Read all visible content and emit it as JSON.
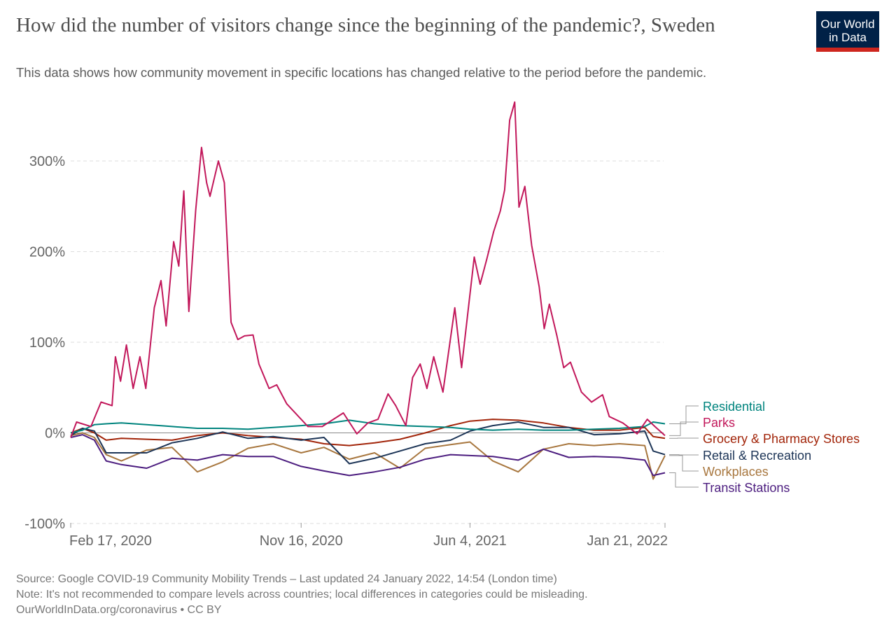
{
  "header": {
    "title": "How did the number of visitors change since the beginning of the pandemic?, Sweden",
    "subtitle": "This data shows how community movement in specific locations has changed relative to the period before the pandemic.",
    "logo": "Our World in Data"
  },
  "footer": {
    "source": "Source: Google COVID-19 Community Mobility Trends – Last updated 24 January 2022, 14:54 (London time)",
    "note": "Note: It's not recommended to compare levels across countries; local differences in categories could be misleading.",
    "credit": "OurWorldInData.org/coronavirus • CC BY"
  },
  "chart_data": {
    "type": "line",
    "title": "How did the number of visitors change since the beginning of the pandemic?, Sweden",
    "xlim": [
      "2020-02-17",
      "2022-01-21"
    ],
    "ylim": [
      -100,
      300
    ],
    "x_ticks": [
      {
        "date": "2020-02-17",
        "label": "Feb 17, 2020"
      },
      {
        "date": "2020-11-16",
        "label": "Nov 16, 2020"
      },
      {
        "date": "2021-06-04",
        "label": "Jun 4, 2021"
      },
      {
        "date": "2022-01-21",
        "label": "Jan 21, 2022"
      }
    ],
    "y_ticks": [
      {
        "value": 300,
        "label": "300%"
      },
      {
        "value": 200,
        "label": "200%"
      },
      {
        "value": 100,
        "label": "100%"
      },
      {
        "value": 0,
        "label": "0%"
      },
      {
        "value": -100,
        "label": "-100%"
      }
    ],
    "grid": "horizontal dashed",
    "legend": "right, labels at line ends",
    "series": [
      {
        "name": "Residential",
        "color": "#00847e",
        "dates": [
          "2020-02-17",
          "2020-03-02",
          "2020-03-16",
          "2020-03-30",
          "2020-04-17",
          "2020-05-17",
          "2020-06-16",
          "2020-07-16",
          "2020-08-15",
          "2020-09-14",
          "2020-10-14",
          "2020-11-16",
          "2020-12-13",
          "2021-01-12",
          "2021-02-11",
          "2021-03-13",
          "2021-04-12",
          "2021-05-12",
          "2021-06-04",
          "2021-07-01",
          "2021-07-31",
          "2021-08-30",
          "2021-09-29",
          "2021-10-29",
          "2021-11-28",
          "2021-12-28",
          "2022-01-07",
          "2022-01-21"
        ],
        "values": [
          0,
          3,
          9,
          10,
          11,
          9,
          7,
          5,
          5,
          4,
          6,
          8,
          10,
          14,
          10,
          8,
          7,
          6,
          4,
          3,
          4,
          3,
          3,
          4,
          5,
          7,
          12,
          10
        ]
      },
      {
        "name": "Parks",
        "color": "#c2185b",
        "dates": [
          "2020-02-17",
          "2020-02-24",
          "2020-03-12",
          "2020-03-24",
          "2020-04-06",
          "2020-04-10",
          "2020-04-16",
          "2020-04-23",
          "2020-05-01",
          "2020-05-09",
          "2020-05-16",
          "2020-05-26",
          "2020-06-03",
          "2020-06-09",
          "2020-06-18",
          "2020-06-24",
          "2020-06-30",
          "2020-07-06",
          "2020-07-14",
          "2020-07-21",
          "2020-07-27",
          "2020-07-31",
          "2020-08-10",
          "2020-08-17",
          "2020-08-25",
          "2020-09-02",
          "2020-09-10",
          "2020-09-20",
          "2020-09-27",
          "2020-10-09",
          "2020-10-18",
          "2020-10-30",
          "2020-11-16",
          "2020-11-24",
          "2020-12-11",
          "2021-01-05",
          "2021-01-21",
          "2021-02-03",
          "2021-02-15",
          "2021-02-27",
          "2021-03-08",
          "2021-03-20",
          "2021-03-28",
          "2021-04-06",
          "2021-04-14",
          "2021-04-22",
          "2021-05-03",
          "2021-05-17",
          "2021-05-25",
          "2021-06-03",
          "2021-06-09",
          "2021-06-16",
          "2021-06-24",
          "2021-07-02",
          "2021-07-10",
          "2021-07-15",
          "2021-07-21",
          "2021-07-27",
          "2021-08-01",
          "2021-08-08",
          "2021-08-16",
          "2021-08-25",
          "2021-08-31",
          "2021-09-06",
          "2021-09-15",
          "2021-09-23",
          "2021-10-01",
          "2021-10-14",
          "2021-10-26",
          "2021-11-08",
          "2021-11-16",
          "2021-12-02",
          "2021-12-19",
          "2021-12-31",
          "2022-01-09",
          "2022-01-21"
        ],
        "values": [
          -5,
          12,
          7,
          34,
          30,
          84,
          57,
          97,
          49,
          84,
          49,
          138,
          168,
          118,
          211,
          184,
          267,
          134,
          245,
          315,
          276,
          261,
          300,
          276,
          122,
          103,
          107,
          108,
          76,
          49,
          53,
          32,
          15,
          7,
          7,
          22,
          -1,
          11,
          15,
          43,
          30,
          8,
          61,
          76,
          49,
          84,
          45,
          138,
          72,
          145,
          194,
          164,
          192,
          222,
          245,
          268,
          345,
          365,
          249,
          272,
          207,
          161,
          115,
          142,
          107,
          72,
          78,
          45,
          34,
          42,
          18,
          11,
          -1,
          15,
          7,
          -3
        ]
      },
      {
        "name": "Grocery & Pharmacy Stores",
        "color": "#a2250a",
        "dates": [
          "2020-02-17",
          "2020-03-02",
          "2020-03-16",
          "2020-03-30",
          "2020-04-17",
          "2020-05-17",
          "2020-06-16",
          "2020-07-16",
          "2020-08-15",
          "2020-09-14",
          "2020-10-14",
          "2020-11-16",
          "2020-12-13",
          "2021-01-12",
          "2021-02-11",
          "2021-03-13",
          "2021-04-12",
          "2021-05-12",
          "2021-06-04",
          "2021-07-01",
          "2021-07-31",
          "2021-08-30",
          "2021-09-29",
          "2021-10-29",
          "2021-11-28",
          "2021-12-28",
          "2022-01-07",
          "2022-01-21"
        ],
        "values": [
          0,
          5,
          0,
          -8,
          -6,
          -7,
          -8,
          -3,
          0,
          -3,
          -5,
          -7,
          -12,
          -14,
          -11,
          -7,
          0,
          8,
          13,
          15,
          14,
          11,
          6,
          3,
          3,
          6,
          -4,
          -6
        ]
      },
      {
        "name": "Retail & Recreation",
        "color": "#1d3557",
        "dates": [
          "2020-02-17",
          "2020-03-02",
          "2020-03-16",
          "2020-03-30",
          "2020-04-17",
          "2020-05-17",
          "2020-06-16",
          "2020-07-16",
          "2020-08-15",
          "2020-09-14",
          "2020-10-14",
          "2020-11-16",
          "2020-12-13",
          "2021-01-12",
          "2021-02-11",
          "2021-03-13",
          "2021-04-12",
          "2021-05-12",
          "2021-06-04",
          "2021-07-01",
          "2021-07-31",
          "2021-08-30",
          "2021-09-29",
          "2021-10-29",
          "2021-11-28",
          "2021-12-28",
          "2022-01-07",
          "2022-01-21"
        ],
        "values": [
          -3,
          5,
          2,
          -22,
          -22,
          -22,
          -11,
          -6,
          1,
          -6,
          -4,
          -8,
          -5,
          -34,
          -28,
          -20,
          -12,
          -8,
          2,
          8,
          12,
          6,
          6,
          -2,
          -1,
          2,
          -20,
          -24
        ]
      },
      {
        "name": "Workplaces",
        "color": "#a8773f",
        "dates": [
          "2020-02-17",
          "2020-03-02",
          "2020-03-16",
          "2020-03-30",
          "2020-04-17",
          "2020-05-17",
          "2020-06-16",
          "2020-07-16",
          "2020-08-15",
          "2020-09-14",
          "2020-10-14",
          "2020-11-16",
          "2020-12-13",
          "2021-01-12",
          "2021-02-11",
          "2021-03-13",
          "2021-04-12",
          "2021-05-12",
          "2021-06-04",
          "2021-07-01",
          "2021-07-31",
          "2021-08-30",
          "2021-09-29",
          "2021-10-29",
          "2021-11-28",
          "2021-12-28",
          "2022-01-07",
          "2022-01-21"
        ],
        "values": [
          -3,
          0,
          -5,
          -24,
          -31,
          -19,
          -16,
          -43,
          -32,
          -17,
          -12,
          -22,
          -16,
          -29,
          -22,
          -39,
          -17,
          -13,
          -10,
          -31,
          -43,
          -18,
          -12,
          -14,
          -12,
          -14,
          -51,
          -25
        ]
      },
      {
        "name": "Transit Stations",
        "color": "#4c1d7f",
        "dates": [
          "2020-02-17",
          "2020-03-02",
          "2020-03-16",
          "2020-03-30",
          "2020-04-17",
          "2020-05-17",
          "2020-06-16",
          "2020-07-16",
          "2020-08-15",
          "2020-09-14",
          "2020-10-14",
          "2020-11-16",
          "2020-12-13",
          "2021-01-12",
          "2021-02-11",
          "2021-03-13",
          "2021-04-12",
          "2021-05-12",
          "2021-06-04",
          "2021-07-01",
          "2021-07-31",
          "2021-08-30",
          "2021-09-29",
          "2021-10-29",
          "2021-11-28",
          "2021-12-28",
          "2022-01-07",
          "2022-01-21"
        ],
        "values": [
          -5,
          -2,
          -8,
          -31,
          -35,
          -39,
          -28,
          -30,
          -24,
          -26,
          -26,
          -37,
          -42,
          -47,
          -43,
          -38,
          -29,
          -24,
          -25,
          -26,
          -30,
          -18,
          -27,
          -26,
          -27,
          -30,
          -47,
          -44
        ]
      }
    ]
  }
}
